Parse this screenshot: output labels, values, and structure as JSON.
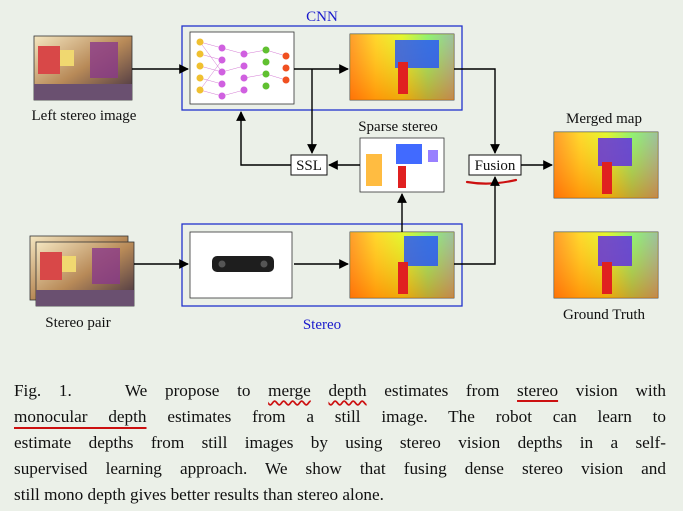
{
  "figure": {
    "labels": {
      "cnn": "CNN",
      "left_stereo_image": "Left stereo image",
      "sparse_stereo": "Sparse stereo",
      "merged_map": "Merged map",
      "ssl": "SSL",
      "fusion": "Fusion",
      "stereo_pair": "Stereo pair",
      "stereo": "Stereo",
      "ground_truth": "Ground Truth"
    },
    "colors": {
      "box_blue": "#2233cc",
      "label_blue": "#1a1acc",
      "annotation_red": "#cc1010",
      "background": "#ebf0e8"
    }
  },
  "caption": {
    "lines": [
      "Fig. 1.   We propose to merge depth estimates from stereo vision with",
      "monocular depth estimates from a still image. The robot can learn to",
      "estimate depths from still images by using stereo vision depths in a self-",
      "supervised learning approach. We show that fusing dense stereo vision and",
      "still mono depth gives better results than stereo alone."
    ],
    "underlined_words": [
      "merge",
      "depth",
      "stereo",
      "monocular depth"
    ]
  }
}
